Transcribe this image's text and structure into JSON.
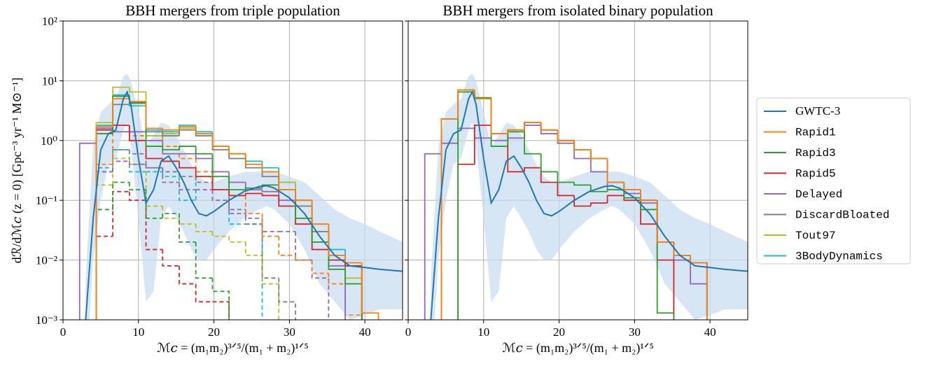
{
  "chart_data": [
    {
      "type": "histogram",
      "title": "BBH mergers from triple population",
      "x_label": "ℳ𝑐 = (m₁m₂)³ᐟ⁵/(m₁ + m₂)¹ᐟ⁵",
      "y_label": "dℛ/dℳ𝑐 (z = 0) [Gpc⁻³ yr⁻¹ M⊙⁻¹]",
      "xlim": [
        0,
        45
      ],
      "xticks": [
        0,
        10,
        20,
        30,
        40
      ],
      "ylim": [
        0.001,
        100
      ],
      "log_y": true,
      "grid": true,
      "yticks": [
        {
          "value": 0.001,
          "label": "10⁻³"
        },
        {
          "value": 0.01,
          "label": "10⁻²"
        },
        {
          "value": 0.1,
          "label": "10⁻¹"
        },
        {
          "value": 1,
          "label": "10⁰"
        },
        {
          "value": 10,
          "label": "10¹"
        },
        {
          "value": 100,
          "label": "10²"
        }
      ],
      "bins": [
        2.2,
        4.4,
        6.6,
        8.8,
        11,
        13.2,
        15.4,
        17.6,
        19.8,
        22,
        24.2,
        26.4,
        28.6,
        30.8,
        33,
        35.2,
        37.4,
        39.6,
        41.8,
        44
      ],
      "line": {
        "name": "GWTC-3",
        "color": "#1f77b4",
        "band_color": "#c6dbef",
        "x": [
          3,
          4,
          5,
          6,
          7,
          8,
          8.5,
          9,
          10,
          11,
          12,
          13,
          14,
          15,
          16,
          17,
          18,
          19,
          20,
          22,
          24,
          26,
          27,
          28,
          30,
          32,
          34,
          36,
          38,
          40,
          42,
          45
        ],
        "values": [
          0.001,
          0.05,
          0.7,
          1.3,
          1.5,
          5,
          6.5,
          4,
          0.5,
          0.09,
          0.15,
          0.45,
          0.55,
          0.35,
          0.2,
          0.1,
          0.06,
          0.055,
          0.065,
          0.1,
          0.14,
          0.17,
          0.175,
          0.16,
          0.11,
          0.06,
          0.025,
          0.012,
          0.008,
          0.0075,
          0.007,
          0.0065
        ],
        "lower": [
          0.0001,
          0.01,
          0.1,
          0.4,
          0.5,
          1.5,
          2,
          0.8,
          0.05,
          0.002,
          0.003,
          0.05,
          0.08,
          0.05,
          0.03,
          0.015,
          0.01,
          0.01,
          0.015,
          0.03,
          0.05,
          0.07,
          0.08,
          0.07,
          0.04,
          0.015,
          0.004,
          0.002,
          0.001,
          0.0012,
          0.0015,
          0.0015
        ],
        "upper": [
          0.005,
          0.8,
          3,
          4,
          5,
          12,
          13,
          10,
          3,
          0.8,
          1.2,
          2,
          1.8,
          1.2,
          0.7,
          0.4,
          0.25,
          0.2,
          0.2,
          0.25,
          0.3,
          0.3,
          0.3,
          0.3,
          0.25,
          0.2,
          0.12,
          0.07,
          0.05,
          0.04,
          0.03,
          0.02
        ]
      },
      "series": [
        {
          "name": "Rapid1",
          "color": "#ff7f0e",
          "values": [
            null,
            1.7,
            5,
            4.5,
            1.6,
            1.5,
            1.7,
            1.3,
            0.8,
            0.6,
            0.4,
            0.3,
            0.15,
            0.1,
            0.04,
            0.012,
            0.009,
            0.0013,
            null
          ],
          "dashed_values": [
            null,
            0.4,
            1.8,
            1.2,
            1.2,
            0.8,
            0.5,
            0.3,
            0.25,
            0.12,
            0.06,
            0.025,
            0.012,
            0.01,
            0.006,
            0.004,
            0.0012,
            null,
            null
          ]
        },
        {
          "name": "Rapid3",
          "color": "#2ca02c",
          "values": [
            null,
            1.3,
            5.5,
            4.3,
            0.8,
            0.7,
            0.8,
            0.6,
            0.25,
            0.15,
            0.16,
            0.18,
            0.15,
            0.05,
            0.02,
            0.007,
            0.004,
            null,
            null
          ],
          "dashed_values": [
            null,
            0.07,
            0.2,
            0.15,
            0.05,
            0.06,
            0.02,
            0.005,
            0.003,
            null,
            null,
            null,
            null,
            null,
            null,
            null,
            null,
            null,
            null
          ]
        },
        {
          "name": "Rapid5",
          "color": "#d62728",
          "values": [
            null,
            1.5,
            1.8,
            1.0,
            0.5,
            0.45,
            0.35,
            0.25,
            0.15,
            0.12,
            0.13,
            0.12,
            0.08,
            0.04,
            0.015,
            0.01,
            0.008,
            null,
            null
          ],
          "dashed_values": [
            null,
            0.025,
            0.14,
            0.1,
            0.015,
            0.008,
            0.004,
            0.002,
            0.002,
            null,
            null,
            null,
            null,
            null,
            null,
            null,
            null,
            null,
            null
          ]
        },
        {
          "name": "Delayed",
          "color": "#9467bd",
          "values": [
            0.9,
            1.6,
            1.4,
            1.4,
            1.0,
            0.6,
            0.6,
            0.5,
            0.3,
            0.2,
            0.15,
            0.14,
            0.1,
            0.05,
            0.02,
            0.008,
            null,
            null,
            null
          ],
          "dashed_values": [
            null,
            0.3,
            0.45,
            0.4,
            0.35,
            0.2,
            0.15,
            0.15,
            0.1,
            0.06,
            0.05,
            0.03,
            0.03,
            0.01,
            0.005,
            null,
            null,
            null,
            null
          ]
        },
        {
          "name": "DiscardBloated",
          "color": "#7f7f7f",
          "values": [
            null,
            1.6,
            4.0,
            4.2,
            1.4,
            1.2,
            1.5,
            1.2,
            0.7,
            0.5,
            0.35,
            0.25,
            0.15,
            0.08,
            0.03,
            0.012,
            0.008,
            null,
            null
          ],
          "dashed_values": [
            null,
            0.3,
            0.7,
            0.6,
            0.35,
            0.3,
            0.25,
            0.2,
            0.15,
            0.07,
            0.04,
            0.005,
            0.002,
            null,
            null,
            null,
            null,
            null,
            null
          ]
        },
        {
          "name": "Tout97",
          "color": "#bcbd22",
          "values": [
            null,
            2.0,
            7.8,
            6.5,
            1.2,
            1.3,
            1.6,
            1.3,
            0.8,
            0.6,
            0.4,
            0.3,
            0.2,
            0.1,
            0.03,
            0.01,
            0.005,
            null,
            null
          ],
          "dashed_values": [
            null,
            0.18,
            0.5,
            0.4,
            0.08,
            0.05,
            0.04,
            0.03,
            0.025,
            0.02,
            0.012,
            0.004,
            null,
            null,
            null,
            null,
            null,
            null,
            null
          ]
        },
        {
          "name": "3BodyDynamics",
          "color": "#17becf",
          "values": [
            null,
            1.8,
            5.8,
            3.8,
            1.5,
            1.4,
            1.8,
            1.4,
            0.8,
            0.6,
            0.45,
            0.35,
            0.2,
            0.1,
            0.04,
            0.015,
            0.008,
            null,
            null
          ],
          "dashed_values": [
            null,
            0.35,
            0.7,
            0.3,
            0.3,
            0.25,
            0.1,
            0.25,
            0.15,
            0.04,
            0.04,
            null,
            null,
            null,
            null,
            null,
            null,
            null,
            null
          ]
        }
      ]
    },
    {
      "type": "histogram",
      "title": "BBH mergers from isolated binary population",
      "x_label": "ℳ𝑐 = (m₁m₂)³ᐟ⁵/(m₁ + m₂)¹ᐟ⁵",
      "xlim": [
        0,
        45
      ],
      "xticks": [
        0,
        10,
        20,
        30,
        40
      ],
      "ylim": [
        0.001,
        100
      ],
      "log_y": true,
      "grid": true,
      "yticks": [
        0.001,
        0.01,
        0.1,
        1,
        10,
        100
      ],
      "bins": [
        2.2,
        4.4,
        6.6,
        8.8,
        11,
        13.2,
        15.4,
        17.6,
        19.8,
        22,
        24.2,
        26.4,
        28.6,
        30.8,
        33,
        35.2,
        37.4,
        39.6,
        41.8,
        44
      ],
      "legend": "right",
      "line": {
        "name": "GWTC-3",
        "color": "#1f77b4",
        "band_color": "#c6dbef",
        "x": [
          3,
          4,
          5,
          6,
          7,
          8,
          8.5,
          9,
          10,
          11,
          12,
          13,
          14,
          15,
          16,
          17,
          18,
          19,
          20,
          22,
          24,
          26,
          27,
          28,
          30,
          32,
          34,
          36,
          38,
          40,
          42,
          45
        ],
        "values": [
          0.001,
          0.05,
          0.7,
          1.3,
          1.5,
          5,
          6.5,
          4,
          0.5,
          0.09,
          0.15,
          0.45,
          0.55,
          0.35,
          0.2,
          0.1,
          0.06,
          0.055,
          0.065,
          0.1,
          0.14,
          0.17,
          0.175,
          0.16,
          0.11,
          0.06,
          0.025,
          0.012,
          0.008,
          0.0075,
          0.007,
          0.0065
        ],
        "lower": [
          0.0001,
          0.01,
          0.1,
          0.4,
          0.5,
          1.5,
          2,
          0.8,
          0.05,
          0.002,
          0.003,
          0.05,
          0.08,
          0.05,
          0.03,
          0.015,
          0.01,
          0.01,
          0.015,
          0.03,
          0.05,
          0.07,
          0.08,
          0.07,
          0.04,
          0.015,
          0.004,
          0.002,
          0.001,
          0.0012,
          0.0015,
          0.0015
        ],
        "upper": [
          0.005,
          0.8,
          3,
          4,
          5,
          12,
          13,
          10,
          3,
          0.8,
          1.2,
          2,
          1.8,
          1.2,
          0.7,
          0.4,
          0.25,
          0.2,
          0.2,
          0.25,
          0.3,
          0.3,
          0.3,
          0.3,
          0.25,
          0.2,
          0.12,
          0.07,
          0.05,
          0.04,
          0.03,
          0.02
        ]
      },
      "series": [
        {
          "name": "Rapid1",
          "color": "#ff7f0e",
          "values": [
            null,
            2.3,
            7,
            5,
            1.3,
            1.5,
            2,
            1.5,
            1,
            0.7,
            0.5,
            0.2,
            0.15,
            0.1,
            0.02,
            0.012,
            0.009,
            null,
            null
          ]
        },
        {
          "name": "Rapid3",
          "color": "#2ca02c",
          "values": [
            null,
            null,
            6.5,
            5.2,
            0.8,
            1.4,
            0.6,
            0.3,
            0.2,
            0.18,
            0.14,
            0.15,
            0.11,
            0.07,
            0.0013,
            null,
            null,
            null,
            null
          ]
        },
        {
          "name": "Rapid5",
          "color": "#d62728",
          "values": [
            null,
            null,
            0.4,
            1.8,
            1.3,
            0.3,
            0.35,
            0.2,
            0.12,
            0.08,
            0.09,
            0.12,
            0.1,
            0.04,
            0.01,
            null,
            null,
            null,
            null
          ]
        },
        {
          "name": "Delayed",
          "color": "#9467bd",
          "values": [
            0.6,
            0.9,
            1.6,
            1.1,
            1.0,
            1.1,
            1.8,
            1.3,
            0.9,
            0.5,
            0.3,
            0.15,
            0.13,
            0.09,
            0.02,
            0.01,
            0.004,
            null,
            null
          ]
        },
        {
          "name": "DiscardBloated",
          "color": "#7f7f7f",
          "values": [
            null,
            2.3,
            7,
            5,
            1.3,
            1.5,
            2,
            1.5,
            1,
            0.7,
            0.5,
            0.2,
            0.15,
            0.1,
            0.02,
            0.012,
            0.009,
            null,
            null
          ]
        },
        {
          "name": "Tout97",
          "color": "#bcbd22",
          "values": [
            null,
            2.3,
            7,
            5,
            1.3,
            1.5,
            2,
            1.5,
            1,
            0.7,
            0.5,
            0.2,
            0.15,
            0.1,
            0.02,
            0.012,
            0.009,
            null,
            null
          ]
        },
        {
          "name": "3BodyDynamics",
          "color": "#17becf",
          "values": [
            null,
            2.3,
            7,
            5,
            1.3,
            1.5,
            2,
            1.5,
            1,
            0.7,
            0.5,
            0.2,
            0.15,
            0.1,
            0.02,
            0.012,
            0.009,
            null,
            null
          ]
        }
      ]
    }
  ]
}
